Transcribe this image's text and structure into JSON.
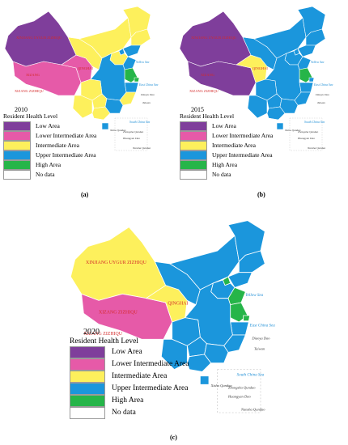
{
  "colors": {
    "low": "#7f3e9b",
    "lower_intermediate": "#e65aa8",
    "intermediate": "#fdf05c",
    "upper_intermediate": "#1b96dc",
    "high": "#26b549",
    "no_data": "#ffffff",
    "province_border": "#ffffff",
    "label_red": "#d42a2a",
    "sea_label": "#1f8fd6"
  },
  "legend_labels": {
    "title": "Resident Health Level",
    "low": "Low Area",
    "lower_intermediate": "Lower Intermediate Area",
    "intermediate": "Intermediate Area",
    "upper_intermediate": "Upper Intermediate Area",
    "high": "High Area",
    "no_data": "No data"
  },
  "sea_labels": {
    "yellow_sea": "Yellow Sea",
    "east_china_sea": "East China Sea",
    "south_china_sea": "South China Sea"
  },
  "panels": [
    {
      "id": "a",
      "year": "2010",
      "caption": "(a)",
      "regions": {
        "xinjiang": "low",
        "tibet": "lower_intermediate",
        "qinghai": "lower_intermediate",
        "gansu": "intermediate",
        "inner_mongolia": "intermediate",
        "heilongjiang": "intermediate",
        "jilin": "intermediate",
        "liaoning": "upper_intermediate",
        "beijing": "upper_intermediate",
        "hebei": "intermediate",
        "shandong": "upper_intermediate",
        "jiangsu": "high",
        "shanghai": "high",
        "zhejiang": "upper_intermediate",
        "sichuan": "intermediate",
        "yunnan": "intermediate",
        "guizhou": "intermediate",
        "guangxi": "intermediate",
        "guangdong": "upper_intermediate",
        "fujian": "intermediate",
        "central": "upper_intermediate",
        "hainan": "upper_intermediate",
        "taiwan": "no_data",
        "islands": "no_data"
      },
      "labels": {
        "xinjiang": "XINJIANG UYGUR ZIZHIQU",
        "tibet": "XIZANG",
        "qinghai": "QINGHAI",
        "south_tibet": "XIZANG ZIZHIQU",
        "taiwan": "Taiwan",
        "diaoyu": "Diaoyu Dao",
        "xisha": "Xisha Qundao",
        "zhongsha": "Zhongsha Qundao",
        "huangyan": "Huangyan Dao",
        "nansha": "Nansha Qundao"
      }
    },
    {
      "id": "b",
      "year": "2015",
      "caption": "(b)",
      "regions": {
        "xinjiang": "low",
        "tibet": "low",
        "qinghai": "intermediate",
        "gansu": "upper_intermediate",
        "inner_mongolia": "upper_intermediate",
        "heilongjiang": "upper_intermediate",
        "jilin": "upper_intermediate",
        "liaoning": "upper_intermediate",
        "beijing": "upper_intermediate",
        "hebei": "upper_intermediate",
        "shandong": "upper_intermediate",
        "jiangsu": "high",
        "shanghai": "upper_intermediate",
        "zhejiang": "upper_intermediate",
        "sichuan": "upper_intermediate",
        "yunnan": "upper_intermediate",
        "guizhou": "upper_intermediate",
        "guangxi": "upper_intermediate",
        "guangdong": "upper_intermediate",
        "fujian": "upper_intermediate",
        "central": "upper_intermediate",
        "hainan": "upper_intermediate",
        "taiwan": "no_data",
        "islands": "no_data"
      },
      "labels": {
        "xinjiang": "XINJIANG UYGUR ZIZHIQU",
        "tibet": "XIZANG",
        "qinghai": "QINGHAI",
        "south_tibet": "XIZANG ZIZHIQU",
        "taiwan": "Taiwan",
        "diaoyu": "Diaoyu Dao",
        "xisha": "Xisha Qundao",
        "zhongsha": "Zhongsha Qundao",
        "huangyan": "Huangyan Dao",
        "nansha": "Nansha Qundao"
      }
    },
    {
      "id": "c",
      "year": "2020",
      "caption": "(c)",
      "regions": {
        "xinjiang": "intermediate",
        "tibet": "lower_intermediate",
        "qinghai": "intermediate",
        "gansu": "upper_intermediate",
        "inner_mongolia": "upper_intermediate",
        "heilongjiang": "upper_intermediate",
        "jilin": "upper_intermediate",
        "liaoning": "upper_intermediate",
        "beijing": "high",
        "hebei": "upper_intermediate",
        "shandong": "high",
        "jiangsu": "high",
        "shanghai": "high",
        "zhejiang": "upper_intermediate",
        "sichuan": "upper_intermediate",
        "yunnan": "upper_intermediate",
        "guizhou": "upper_intermediate",
        "guangxi": "upper_intermediate",
        "guangdong": "upper_intermediate",
        "fujian": "upper_intermediate",
        "central": "upper_intermediate",
        "hainan": "upper_intermediate",
        "taiwan": "no_data",
        "islands": "no_data"
      },
      "labels": {
        "xinjiang": "XINJIANG UYGUR ZIZHIQU",
        "tibet": "XIZANG ZIZHIQU",
        "qinghai": "QINGHAI",
        "south_tibet": "XIZANG ZIZHIQU",
        "taiwan": "Taiwan",
        "diaoyu": "Diaoyu Dao",
        "xisha": "Xisha Qundao",
        "zhongsha": "Zhongsha Qundao",
        "huangyan": "Huangyan Dao",
        "nansha": "Nansha Qundao"
      }
    }
  ]
}
